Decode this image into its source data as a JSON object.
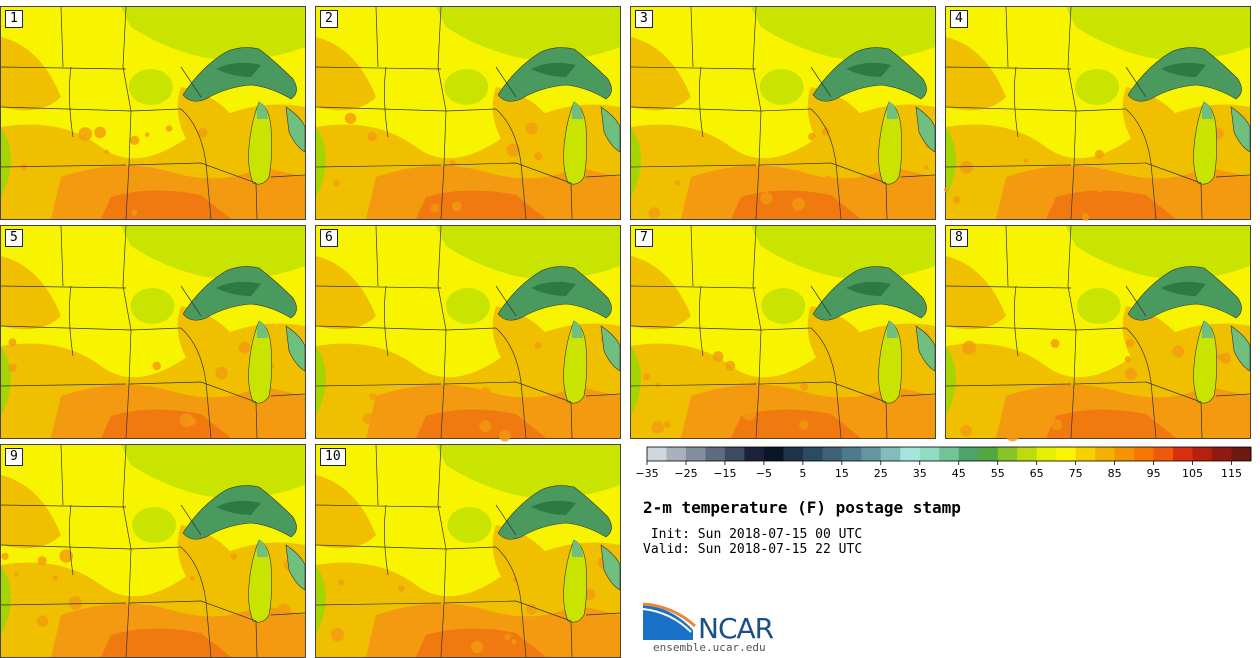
{
  "panels": [
    {
      "label": "1"
    },
    {
      "label": "2"
    },
    {
      "label": "3"
    },
    {
      "label": "4"
    },
    {
      "label": "5"
    },
    {
      "label": "6"
    },
    {
      "label": "7"
    },
    {
      "label": "8"
    },
    {
      "label": "9"
    },
    {
      "label": "10"
    }
  ],
  "map_colors": {
    "base": "#f8f400",
    "warm": "#f0c000",
    "hot": "#f39a10",
    "hotter": "#f07a10",
    "cool": "#c8e400",
    "cooler": "#a6d400",
    "lake": "#4a9a60",
    "lake_light": "#6fbf7e",
    "lake_dark": "#2f7a44",
    "borders": "#333333"
  },
  "colorbar": {
    "colors": [
      "#d0d6de",
      "#a9b1bc",
      "#848e9c",
      "#5f6a7c",
      "#3e4a5e",
      "#1c2336",
      "#0a1526",
      "#1e3248",
      "#2c4a62",
      "#3e6178",
      "#4f7a8c",
      "#6596a0",
      "#84bcbc",
      "#a5e4dc",
      "#8fdcc0",
      "#70c497",
      "#4ea36a",
      "#53a640",
      "#88c428",
      "#bcdc10",
      "#e6f000",
      "#fff400",
      "#f8d000",
      "#f5b000",
      "#f59400",
      "#f57600",
      "#ef5a08",
      "#d8300a",
      "#b8200e",
      "#8e1a10",
      "#6e1a10"
    ],
    "ticks": [
      "−35",
      "−25",
      "−15",
      "−5",
      "5",
      "15",
      "25",
      "35",
      "45",
      "55",
      "65",
      "75",
      "85",
      "95",
      "105",
      "115"
    ]
  },
  "title": "2-m temperature (F) postage stamp",
  "init_line": " Init: Sun 2018-07-15 00 UTC",
  "valid_line": "Valid: Sun 2018-07-15 22 UTC",
  "logo": {
    "text": "NCAR",
    "site": "ensemble.ucar.edu",
    "blue": "#1a72c8",
    "orange": "#e8893a"
  }
}
